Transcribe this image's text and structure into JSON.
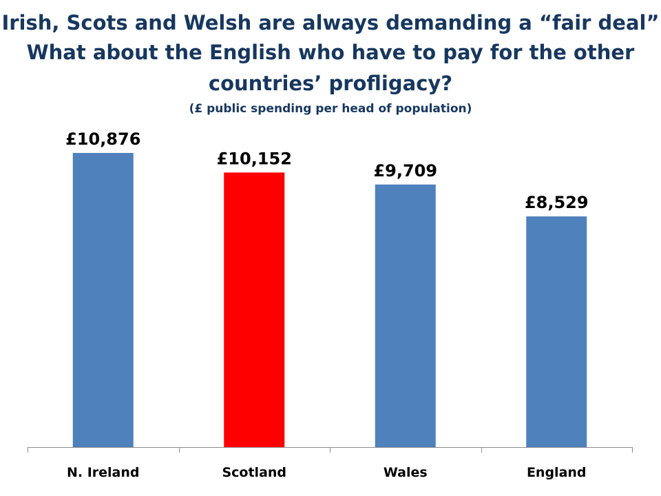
{
  "title_lines": [
    "Irish, Scots and Welsh are always demanding a “fair deal”",
    "What about the English who have to pay for the other",
    "countries’ profligacy?"
  ],
  "subtitle": "(£ public spending per head of population)",
  "colors": {
    "default_bar": "#4f81bd",
    "highlight_bar": "#ff0000",
    "title": "#17375e",
    "axis": "#8c8c8c"
  },
  "chart_data": {
    "type": "bar",
    "title": "Irish, Scots and Welsh are always demanding a “fair deal” What about the English who have to pay for the other countries’ profligacy?",
    "subtitle": "(£ public spending per head of population)",
    "categories": [
      "N. Ireland",
      "Scotland",
      "Wales",
      "England"
    ],
    "values": [
      10876,
      10152,
      9709,
      8529
    ],
    "value_labels": [
      "£10,876",
      "£10,152",
      "£9,709",
      "£8,529"
    ],
    "highlight_category": "Scotland",
    "xlabel": "",
    "ylabel": "",
    "ylim": [
      0,
      10876
    ],
    "grid": false,
    "legend": "none"
  }
}
